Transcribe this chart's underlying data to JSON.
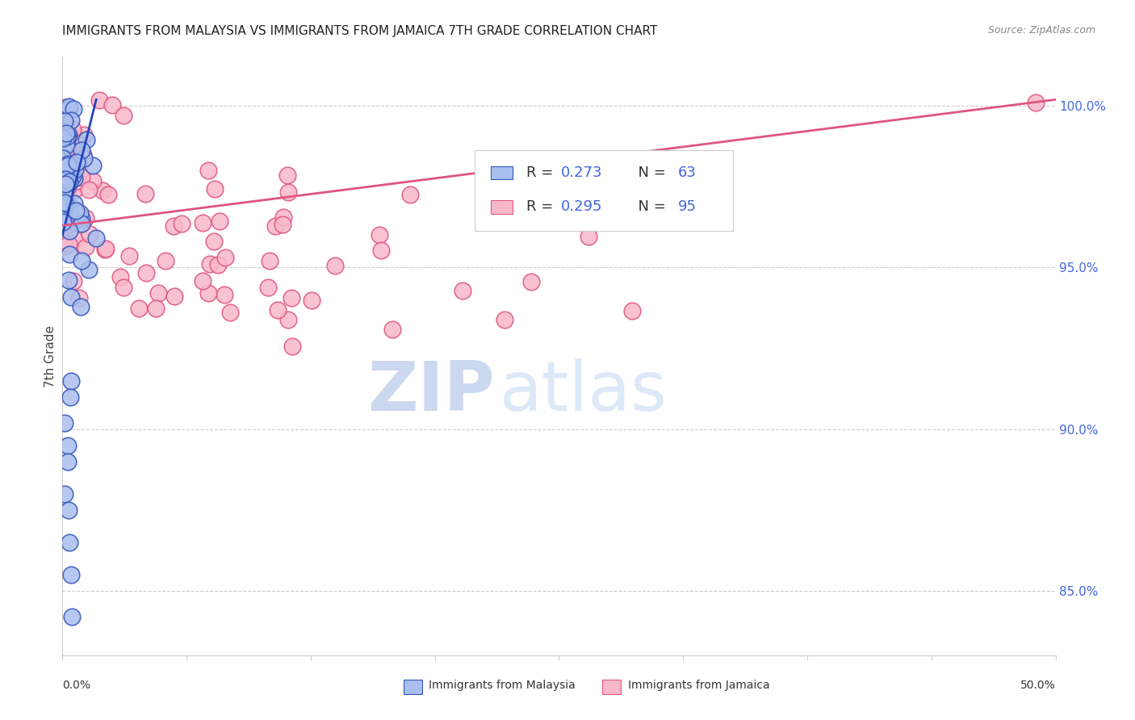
{
  "title": "IMMIGRANTS FROM MALAYSIA VS IMMIGRANTS FROM JAMAICA 7TH GRADE CORRELATION CHART",
  "source": "Source: ZipAtlas.com",
  "ylabel": "7th Grade",
  "right_yticks": [
    85.0,
    90.0,
    95.0,
    100.0
  ],
  "right_ytick_labels": [
    "85.0%",
    "90.0%",
    "95.0%",
    "100.0%"
  ],
  "legend_malaysia_r": "R = 0.273",
  "legend_malaysia_n": "N = 63",
  "legend_jamaica_r": "R = 0.295",
  "legend_jamaica_n": "N = 95",
  "legend_malaysia_label": "Immigrants from Malaysia",
  "legend_jamaica_label": "Immigrants from Jamaica",
  "malaysia_fill_color": "#aabfee",
  "malaysia_edge_color": "#3355bb",
  "jamaica_fill_color": "#f8b8cc",
  "jamaica_edge_color": "#e05580",
  "malaysia_line_color": "#2244bb",
  "jamaica_line_color": "#e05580",
  "watermark_zip": "ZIP",
  "watermark_atlas": "atlas",
  "x_min": 0.0,
  "x_max": 0.5,
  "y_min": 83.0,
  "y_max": 101.5,
  "grid_color": "#cccccc",
  "spine_color": "#cccccc",
  "tick_label_color": "#4466dd",
  "title_fontsize": 11,
  "source_fontsize": 9
}
